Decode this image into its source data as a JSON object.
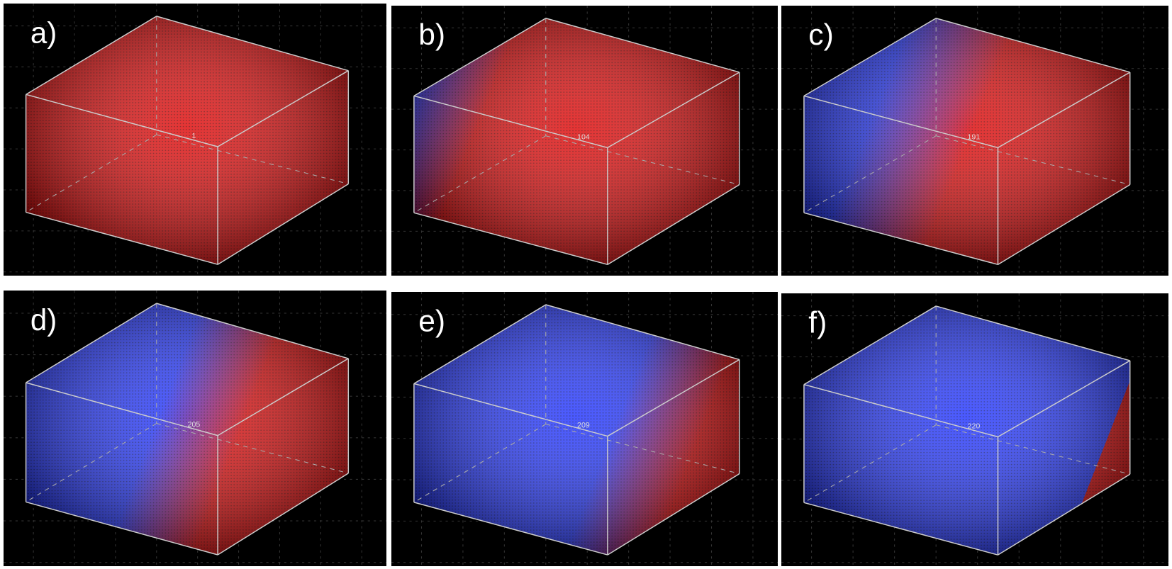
{
  "panels": [
    {
      "label": "a)",
      "step": "1"
    },
    {
      "label": "b)",
      "step": "104"
    },
    {
      "label": "c)",
      "step": "191"
    },
    {
      "label": "d)",
      "step": "205"
    },
    {
      "label": "e)",
      "step": "209"
    },
    {
      "label": "f)",
      "step": "220"
    }
  ]
}
